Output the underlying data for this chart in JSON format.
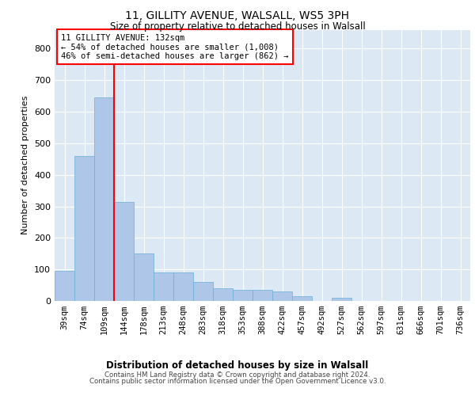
{
  "title_line1": "11, GILLITY AVENUE, WALSALL, WS5 3PH",
  "title_line2": "Size of property relative to detached houses in Walsall",
  "xlabel": "Distribution of detached houses by size in Walsall",
  "ylabel": "Number of detached properties",
  "categories": [
    "39sqm",
    "74sqm",
    "109sqm",
    "144sqm",
    "178sqm",
    "213sqm",
    "248sqm",
    "283sqm",
    "318sqm",
    "353sqm",
    "388sqm",
    "422sqm",
    "457sqm",
    "492sqm",
    "527sqm",
    "562sqm",
    "597sqm",
    "631sqm",
    "666sqm",
    "701sqm",
    "736sqm"
  ],
  "values": [
    95,
    460,
    645,
    315,
    150,
    90,
    90,
    60,
    40,
    35,
    35,
    30,
    15,
    0,
    10,
    0,
    0,
    0,
    0,
    0,
    0
  ],
  "bar_color": "#aec6e8",
  "bar_edge_color": "#6aaed6",
  "bar_edge_width": 0.5,
  "annotation_line1": "11 GILLITY AVENUE: 132sqm",
  "annotation_line2": "← 54% of detached houses are smaller (1,008)",
  "annotation_line3": "46% of semi-detached houses are larger (862) →",
  "vline_x_index": 2.5,
  "ylim": [
    0,
    860
  ],
  "yticks": [
    0,
    100,
    200,
    300,
    400,
    500,
    600,
    700,
    800
  ],
  "background_color": "#dce9f5",
  "footer_line1": "Contains HM Land Registry data © Crown copyright and database right 2024.",
  "footer_line2": "Contains public sector information licensed under the Open Government Licence v3.0."
}
